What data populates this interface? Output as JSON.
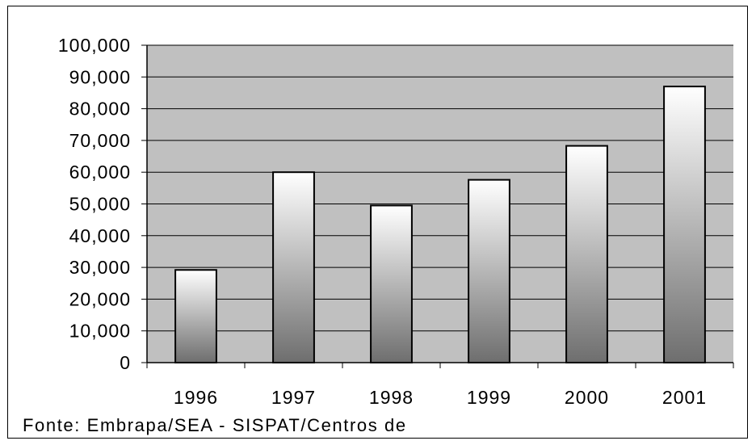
{
  "chart_data": {
    "type": "bar",
    "categories": [
      "1996",
      "1997",
      "1998",
      "1999",
      "2000",
      "2001"
    ],
    "values": [
      29200,
      60000,
      49500,
      57600,
      68300,
      87000
    ],
    "yticks": [
      "0",
      "10,000",
      "20,000",
      "30,000",
      "40,000",
      "50,000",
      "60,000",
      "70,000",
      "80,000",
      "90,000",
      "100,000"
    ],
    "ylim": [
      0,
      100000
    ],
    "grid": true,
    "plot_background": "#c0c0c0",
    "bar_gradient": [
      "#ffffff",
      "#6e6e6e"
    ]
  },
  "source_note": "Fonte: Embrapa/SEA - SISPAT/Centros de"
}
